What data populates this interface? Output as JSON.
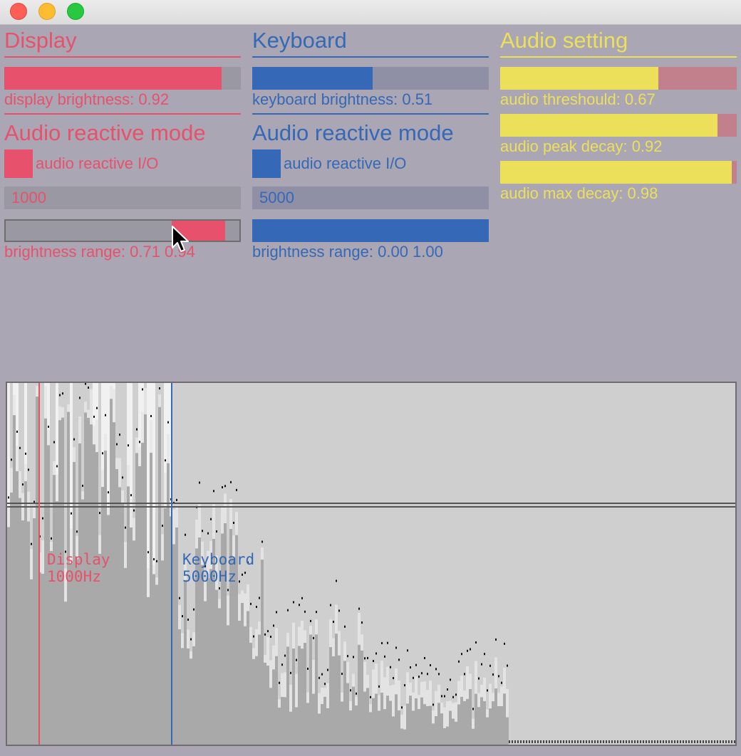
{
  "colors": {
    "display": "#e8516b",
    "keyboard": "#3568b6",
    "audio": "#ece05a",
    "background": "#aaa6b3",
    "track_display": "#9a98a2",
    "track_keyboard": "#8f8fa6",
    "track_audio": "#c27f8c"
  },
  "display": {
    "title": "Display",
    "brightness": {
      "value": 0.92,
      "label": "display brightness: 0.92"
    },
    "mode_title": "Audio reactive mode",
    "toggle_label": "audio reactive I/O",
    "frequency_value": "1000",
    "range": {
      "low": 0.71,
      "high": 0.94,
      "label": "brightness range: 0.71 0.94"
    }
  },
  "keyboard": {
    "title": "Keyboard",
    "brightness": {
      "value": 0.51,
      "label": "keyboard brightness: 0.51"
    },
    "mode_title": "Audio reactive mode",
    "toggle_label": "audio reactive I/O",
    "frequency_value": "5000",
    "range": {
      "low": 0.0,
      "high": 1.0,
      "label": "brightness range: 0.00 1.00"
    }
  },
  "audio": {
    "title": "Audio setting",
    "threshold": {
      "value": 0.67,
      "label": "audio threshould: 0.67"
    },
    "peak_decay": {
      "value": 0.92,
      "label": "audio peak decay: 0.92"
    },
    "max_decay": {
      "value": 0.98,
      "label": "audio max decay: 0.98"
    }
  },
  "spectrum": {
    "display_marker": {
      "name": "Display",
      "freq": "1000Hz"
    },
    "keyboard_marker": {
      "name": "Keyboard",
      "freq": "5000Hz"
    }
  }
}
